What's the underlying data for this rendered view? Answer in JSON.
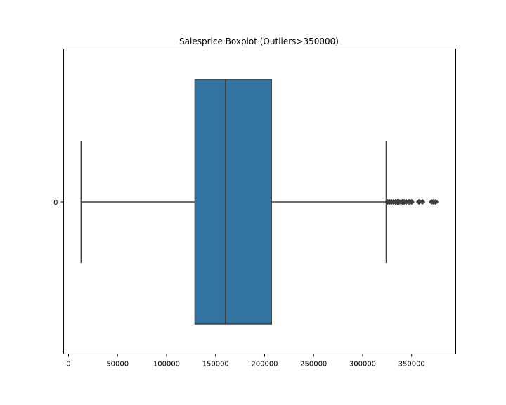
{
  "chart_data": {
    "type": "boxplot",
    "title": "Salesprice Boxplot (Outliers>350000)",
    "orientation": "horizontal",
    "xlabel": "",
    "ylabel": "",
    "xlim": [
      -5000,
      395000
    ],
    "x_ticks": [
      0,
      50000,
      100000,
      150000,
      200000,
      250000,
      300000,
      350000
    ],
    "x_tick_labels": [
      "0",
      "50000",
      "100000",
      "150000",
      "200000",
      "250000",
      "300000",
      "350000"
    ],
    "y_categories": [
      "0"
    ],
    "grid": false,
    "box": {
      "category": "0",
      "whisker_low": 12800,
      "q1": 129000,
      "median": 160000,
      "q3": 207000,
      "whisker_high": 324000,
      "outliers": [
        325500,
        327500,
        329500,
        331500,
        333500,
        335500,
        337000,
        339000,
        340500,
        342500,
        344500,
        347500,
        350000,
        357500,
        361000,
        370500,
        372500,
        374500
      ]
    },
    "colors": {
      "box_fill": "#3274a1",
      "lines": "#3f3f3f",
      "axes": "#000000"
    }
  }
}
